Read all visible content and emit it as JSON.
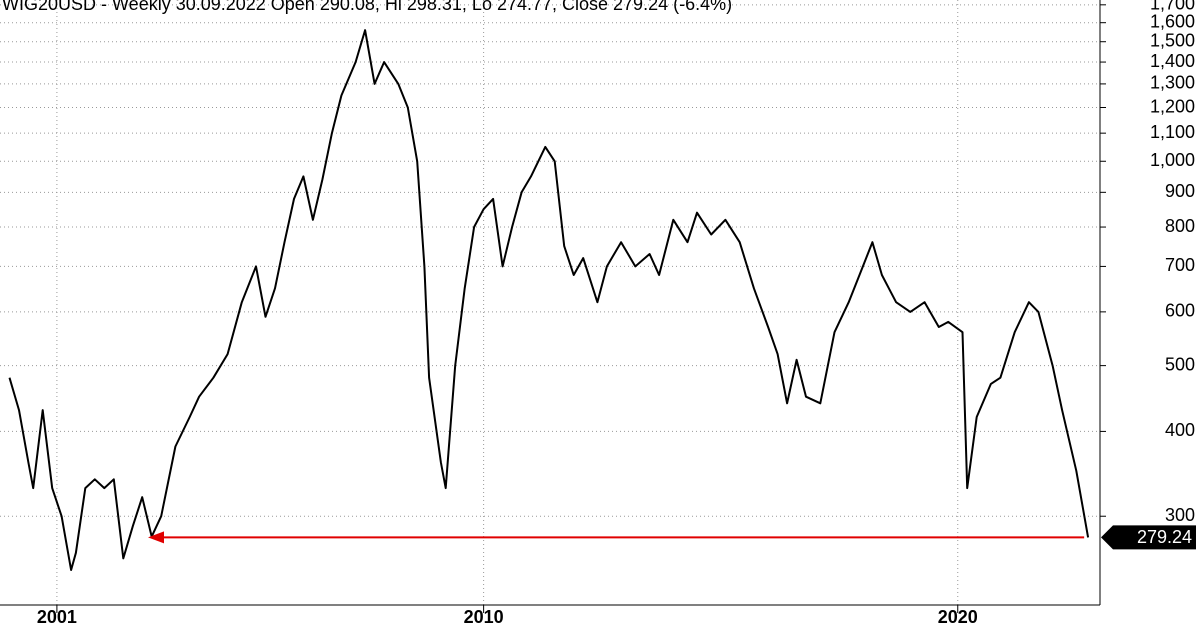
{
  "chart_data": {
    "type": "line",
    "title": "WIG20USD - Weekly 30.09.2022 Open 290.08, Hi 298.31, Lo 274.77, Close 279.24 (-6.4%)",
    "yscale": "log",
    "grid": true,
    "marker_color": "#e00000",
    "xlim": [
      1999.8,
      2023.0
    ],
    "xticks": [
      2001,
      2010,
      2020
    ],
    "ylim": [
      222,
      1728
    ],
    "yticks": [
      300,
      400,
      500,
      600,
      700,
      800,
      900,
      {
        "value": 1000,
        "label": "1,000"
      },
      {
        "value": 1100,
        "label": "1,100"
      },
      {
        "value": 1200,
        "label": "1,200"
      },
      {
        "value": 1300,
        "label": "1,300"
      },
      {
        "value": 1400,
        "label": "1,400"
      },
      {
        "value": 1500,
        "label": "1,500"
      },
      {
        "value": 1600,
        "label": "1,600"
      },
      {
        "value": 1700,
        "label": "1,700"
      }
    ],
    "series": [
      {
        "name": "WIG20USD",
        "color": "#000000",
        "x": [
          2000.0,
          2000.2,
          2000.4,
          2000.5,
          2000.7,
          2000.9,
          2001.1,
          2001.3,
          2001.4,
          2001.6,
          2001.8,
          2002.0,
          2002.2,
          2002.4,
          2002.6,
          2002.8,
          2003.0,
          2003.2,
          2003.5,
          2003.8,
          2004.0,
          2004.3,
          2004.6,
          2004.9,
          2005.2,
          2005.4,
          2005.6,
          2005.8,
          2006.0,
          2006.2,
          2006.4,
          2006.6,
          2006.8,
          2007.0,
          2007.3,
          2007.5,
          2007.7,
          2007.9,
          2008.2,
          2008.4,
          2008.6,
          2008.75,
          2008.85,
          2009.1,
          2009.2,
          2009.4,
          2009.6,
          2009.8,
          2010.0,
          2010.2,
          2010.4,
          2010.6,
          2010.8,
          2011.0,
          2011.3,
          2011.5,
          2011.7,
          2011.9,
          2012.1,
          2012.4,
          2012.6,
          2012.9,
          2013.2,
          2013.5,
          2013.7,
          2014.0,
          2014.3,
          2014.5,
          2014.8,
          2015.1,
          2015.4,
          2015.7,
          2016.0,
          2016.2,
          2016.4,
          2016.6,
          2016.8,
          2017.1,
          2017.4,
          2017.7,
          2018.0,
          2018.2,
          2018.4,
          2018.7,
          2019.0,
          2019.3,
          2019.6,
          2019.8,
          2020.1,
          2020.2,
          2020.4,
          2020.7,
          2020.9,
          2021.2,
          2021.5,
          2021.7,
          2022.0,
          2022.2,
          2022.5,
          2022.75
        ],
        "values": [
          480,
          430,
          360,
          330,
          430,
          330,
          300,
          250,
          265,
          330,
          340,
          330,
          340,
          260,
          290,
          320,
          280,
          300,
          380,
          420,
          450,
          480,
          520,
          620,
          700,
          590,
          650,
          760,
          880,
          950,
          820,
          940,
          1100,
          1250,
          1400,
          1560,
          1300,
          1400,
          1300,
          1200,
          1000,
          700,
          480,
          360,
          330,
          500,
          650,
          800,
          850,
          880,
          700,
          800,
          900,
          950,
          1050,
          1000,
          750,
          680,
          720,
          620,
          700,
          760,
          700,
          730,
          680,
          820,
          760,
          840,
          780,
          820,
          760,
          650,
          570,
          520,
          440,
          510,
          450,
          440,
          560,
          620,
          700,
          760,
          680,
          620,
          600,
          620,
          570,
          580,
          560,
          330,
          420,
          470,
          480,
          560,
          620,
          600,
          500,
          430,
          350,
          279.24
        ]
      }
    ]
  }
}
